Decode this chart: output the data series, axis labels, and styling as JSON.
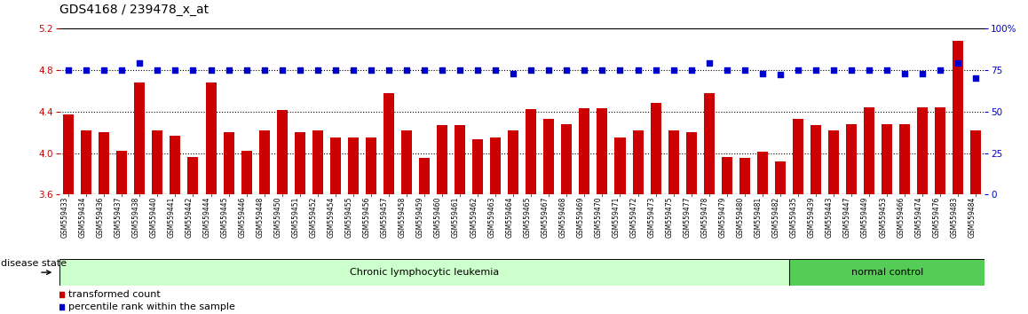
{
  "title": "GDS4168 / 239478_x_at",
  "left_ylim": [
    3.6,
    5.2
  ],
  "right_ylim": [
    0,
    100
  ],
  "left_yticks": [
    3.6,
    4.0,
    4.4,
    4.8,
    5.2
  ],
  "right_yticks": [
    0,
    25,
    50,
    75,
    100
  ],
  "hlines": [
    4.0,
    4.4,
    4.8
  ],
  "bar_color": "#CC0000",
  "dot_color": "#0000CC",
  "samples": [
    "GSM559433",
    "GSM559434",
    "GSM559436",
    "GSM559437",
    "GSM559438",
    "GSM559440",
    "GSM559441",
    "GSM559442",
    "GSM559444",
    "GSM559445",
    "GSM559446",
    "GSM559448",
    "GSM559450",
    "GSM559451",
    "GSM559452",
    "GSM559454",
    "GSM559455",
    "GSM559456",
    "GSM559457",
    "GSM559458",
    "GSM559459",
    "GSM559460",
    "GSM559461",
    "GSM559462",
    "GSM559463",
    "GSM559464",
    "GSM559465",
    "GSM559467",
    "GSM559468",
    "GSM559469",
    "GSM559470",
    "GSM559471",
    "GSM559472",
    "GSM559473",
    "GSM559475",
    "GSM559477",
    "GSM559478",
    "GSM559479",
    "GSM559480",
    "GSM559481",
    "GSM559482",
    "GSM559435",
    "GSM559439",
    "GSM559443",
    "GSM559447",
    "GSM559449",
    "GSM559453",
    "GSM559466",
    "GSM559474",
    "GSM559476",
    "GSM559483",
    "GSM559484"
  ],
  "bar_values": [
    4.37,
    4.22,
    4.2,
    4.02,
    4.68,
    4.22,
    4.17,
    3.96,
    4.68,
    4.2,
    4.02,
    4.22,
    4.41,
    4.2,
    4.22,
    4.15,
    4.15,
    4.15,
    4.58,
    4.22,
    3.95,
    4.27,
    4.27,
    4.13,
    4.15,
    4.22,
    4.42,
    4.33,
    4.28,
    4.43,
    4.43,
    4.15,
    4.22,
    4.48,
    4.22,
    4.2,
    4.58,
    3.96,
    3.95,
    4.01,
    3.92,
    4.33,
    4.27,
    4.22,
    4.28,
    4.44,
    4.28,
    4.28,
    4.44,
    4.44,
    5.08,
    4.22
  ],
  "dot_values_pct": [
    75,
    75,
    75,
    75,
    79,
    75,
    75,
    75,
    75,
    75,
    75,
    75,
    75,
    75,
    75,
    75,
    75,
    75,
    75,
    75,
    75,
    75,
    75,
    75,
    75,
    73,
    75,
    75,
    75,
    75,
    75,
    75,
    75,
    75,
    75,
    75,
    79,
    75,
    75,
    73,
    72,
    75,
    75,
    75,
    75,
    75,
    75,
    73,
    73,
    75,
    79,
    70
  ],
  "disease_state_groups": [
    {
      "label": "Chronic lymphocytic leukemia",
      "start": 0,
      "end": 41,
      "color": "#CCFFCC"
    },
    {
      "label": "normal control",
      "start": 41,
      "end": 52,
      "color": "#55CC55"
    }
  ],
  "legend_items": [
    {
      "label": "transformed count",
      "color": "#CC0000"
    },
    {
      "label": "percentile rank within the sample",
      "color": "#0000CC"
    }
  ],
  "disease_state_label": "disease state",
  "ylabel_left_color": "#CC0000",
  "ylabel_right_color": "#0000CC",
  "title_fontsize": 10,
  "tick_fontsize": 7.5,
  "label_fontsize": 5.5,
  "legend_fontsize": 8,
  "disease_fontsize": 8
}
